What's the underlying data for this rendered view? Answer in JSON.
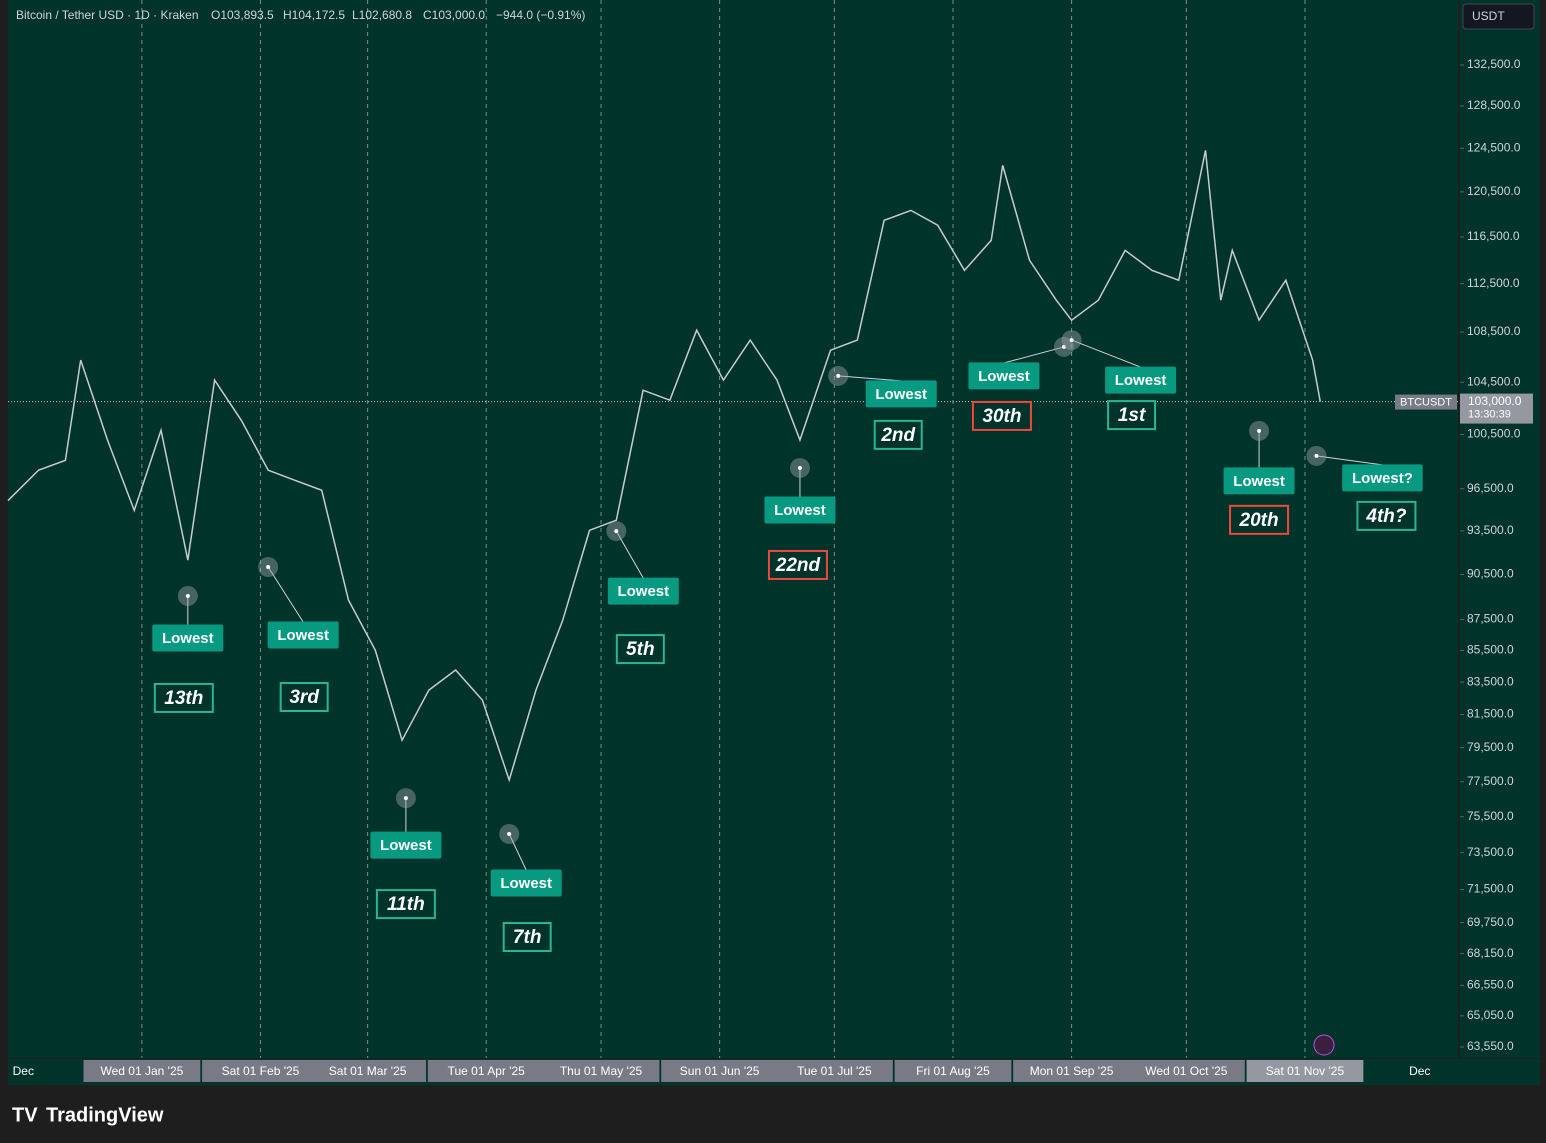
{
  "header": {
    "symbol": "Bitcoin / Tether USD · 1D · Kraken",
    "open": "O103,893.5",
    "high": "H104,172.5",
    "low": "L102,680.8",
    "close": "C103,000.0",
    "change": "−944.0 (−0.91%)",
    "currency": "USDT",
    "brand": "TradingView"
  },
  "chart_data": {
    "type": "line",
    "log_scale": true,
    "color": "#c9cbd1",
    "x": [
      "2024-11-27",
      "2024-12-05",
      "2024-12-12",
      "2024-12-16",
      "2024-12-23",
      "2024-12-30",
      "2025-01-06",
      "2025-01-13",
      "2025-01-20",
      "2025-01-27",
      "2025-02-03",
      "2025-02-10",
      "2025-02-17",
      "2025-02-24",
      "2025-03-03",
      "2025-03-10",
      "2025-03-17",
      "2025-03-24",
      "2025-03-31",
      "2025-04-07",
      "2025-04-14",
      "2025-04-21",
      "2025-04-28",
      "2025-05-05",
      "2025-05-12",
      "2025-05-19",
      "2025-05-26",
      "2025-06-02",
      "2025-06-09",
      "2025-06-16",
      "2025-06-22",
      "2025-06-30",
      "2025-07-07",
      "2025-07-14",
      "2025-07-21",
      "2025-07-28",
      "2025-08-04",
      "2025-08-11",
      "2025-08-14",
      "2025-08-21",
      "2025-08-28",
      "2025-09-01",
      "2025-09-08",
      "2025-09-15",
      "2025-09-22",
      "2025-09-29",
      "2025-10-06",
      "2025-10-10",
      "2025-10-13",
      "2025-10-20",
      "2025-10-27",
      "2025-11-03",
      "2025-11-05"
    ],
    "series": [
      {
        "name": "BTCUSDT",
        "color": "#c9cbd1",
        "values": [
          95650,
          97850,
          98570,
          106250,
          100080,
          94950,
          100810,
          91480,
          104670,
          101560,
          97850,
          97110,
          96390,
          88780,
          85520,
          79950,
          83000,
          84260,
          82380,
          77600,
          83000,
          87460,
          93540,
          94250,
          103880,
          103110,
          108650,
          104670,
          107850,
          104670,
          100080,
          107040,
          107850,
          117960,
          118840,
          117530,
          113630,
          116210,
          122910,
          114490,
          111120,
          109470,
          111120,
          115340,
          113630,
          112790,
          124300,
          111120,
          115340,
          109470,
          112790,
          106250,
          103000
        ]
      }
    ],
    "last_price": {
      "value": 103000,
      "label": "103,000.0",
      "countdown": "13:30:39"
    },
    "xlim": [
      "2024-11-27",
      "2025-12-11"
    ],
    "xticks": [
      {
        "value": "2024-12-01",
        "label": "Dec"
      },
      {
        "value": "2025-01-01",
        "label": "Wed 01 Jan '25"
      },
      {
        "value": "2025-02-01",
        "label": "Sat 01 Feb '25"
      },
      {
        "value": "2025-03-01",
        "label": "Sat 01 Mar '25"
      },
      {
        "value": "2025-04-01",
        "label": "Tue 01 Apr '25"
      },
      {
        "value": "2025-05-01",
        "label": "Thu 01 May '25"
      },
      {
        "value": "2025-06-01",
        "label": "Sun 01 Jun '25"
      },
      {
        "value": "2025-07-01",
        "label": "Tue 01 Jul '25"
      },
      {
        "value": "2025-08-01",
        "label": "Fri 01 Aug '25"
      },
      {
        "value": "2025-09-01",
        "label": "Mon 01 Sep '25"
      },
      {
        "value": "2025-10-01",
        "label": "Wed 01 Oct '25"
      },
      {
        "value": "2025-11-01",
        "label": "Sat 01 Nov '25"
      },
      {
        "value": "2025-12-01",
        "label": "Dec"
      }
    ],
    "ylim": [
      63030,
      139100
    ],
    "yticks": [
      {
        "value": 132500,
        "label": "132,500.0"
      },
      {
        "value": 128500,
        "label": "128,500.0"
      },
      {
        "value": 124500,
        "label": "124,500.0"
      },
      {
        "value": 120500,
        "label": "120,500.0"
      },
      {
        "value": 116500,
        "label": "116,500.0"
      },
      {
        "value": 112500,
        "label": "112,500.0"
      },
      {
        "value": 108500,
        "label": "108,500.0"
      },
      {
        "value": 104500,
        "label": "104,500.0"
      },
      {
        "value": 100500,
        "label": "100,500.0"
      },
      {
        "value": 96500,
        "label": "96,500.0"
      },
      {
        "value": 93500,
        "label": "93,500.0"
      },
      {
        "value": 90500,
        "label": "90,500.0"
      },
      {
        "value": 87500,
        "label": "87,500.0"
      },
      {
        "value": 85500,
        "label": "85,500.0"
      },
      {
        "value": 83500,
        "label": "83,500.0"
      },
      {
        "value": 81500,
        "label": "81,500.0"
      },
      {
        "value": 79500,
        "label": "79,500.0"
      },
      {
        "value": 77500,
        "label": "77,500.0"
      },
      {
        "value": 75500,
        "label": "75,500.0"
      },
      {
        "value": 73500,
        "label": "73,500.0"
      },
      {
        "value": 71500,
        "label": "71,500.0"
      },
      {
        "value": 69750,
        "label": "69,750.0"
      },
      {
        "value": 68150,
        "label": "68,150.0"
      },
      {
        "value": 66550,
        "label": "66,550.0"
      },
      {
        "value": 65050,
        "label": "65,050.0"
      },
      {
        "value": 63550,
        "label": "63,550.0"
      }
    ],
    "grid": true,
    "annotations": [
      {
        "date": "2025-01-13",
        "price": 89060,
        "label": "Lowest",
        "rank": "13th",
        "rank_color": "#2bb594"
      },
      {
        "date": "2025-02-03",
        "price": 91010,
        "label": "Lowest",
        "rank": "3rd",
        "rank_color": "#2bb594"
      },
      {
        "date": "2025-03-11",
        "price": 76560,
        "label": "Lowest",
        "rank": "11th",
        "rank_color": "#2bb594"
      },
      {
        "date": "2025-04-07",
        "price": 74530,
        "label": "Lowest",
        "rank": "7th",
        "rank_color": "#2bb594"
      },
      {
        "date": "2025-05-05",
        "price": 93490,
        "label": "Lowest",
        "rank": "5th",
        "rank_color": "#2bb594"
      },
      {
        "date": "2025-06-22",
        "price": 98010,
        "label": "Lowest",
        "rank": "22nd",
        "rank_color": "#f0483e"
      },
      {
        "date": "2025-07-02",
        "price": 105000,
        "label": "Lowest",
        "rank": "2nd",
        "rank_color": "#2bb594"
      },
      {
        "date": "2025-08-30",
        "price": 107300,
        "label": "Lowest",
        "rank": "30th",
        "rank_color": "#f0483e"
      },
      {
        "date": "2025-09-01",
        "price": 107850,
        "label": "Lowest",
        "rank": "1st",
        "rank_color": "#2bb594"
      },
      {
        "date": "2025-10-20",
        "price": 100770,
        "label": "Lowest",
        "rank": "20th",
        "rank_color": "#f0483e"
      },
      {
        "date": "2025-11-04",
        "price": 98900,
        "label": "Lowest?",
        "rank": "4th?",
        "rank_color": "#2bb594"
      }
    ]
  }
}
